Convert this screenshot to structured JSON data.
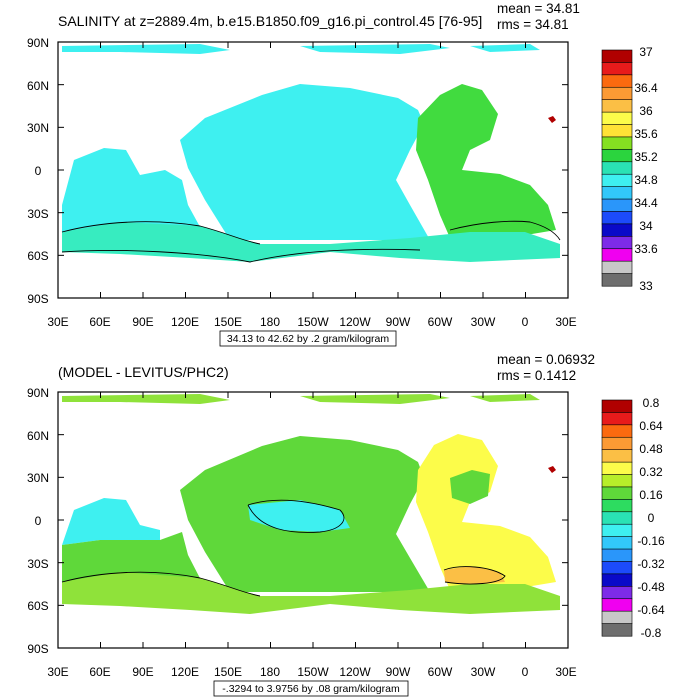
{
  "panels": [
    {
      "title": "SALINITY at z=2889.4m, b.e15.B1850.f09_g16.pi_control.45 [76-95]",
      "mean_text": "mean = 34.81",
      "rms_text": "rms = 34.81",
      "range_text": "34.13 to 42.62 by .2 gram/kilogram",
      "lat_labels": [
        "90N",
        "60N",
        "30N",
        "0",
        "30S",
        "60S",
        "90S"
      ],
      "lon_labels": [
        "30E",
        "60E",
        "90E",
        "120E",
        "150E",
        "180",
        "150W",
        "120W",
        "90W",
        "60W",
        "30W",
        "0",
        "30E"
      ],
      "colorbar": {
        "labels": [
          "37",
          "36.4",
          "36",
          "35.6",
          "35.2",
          "34.8",
          "34.4",
          "34",
          "33.6",
          "33"
        ],
        "colors": [
          "#b00000",
          "#e81b1b",
          "#fb6a0f",
          "#fb9a34",
          "#fbbf45",
          "#fcfc4a",
          "#ffe236",
          "#85e021",
          "#2bd43e",
          "#2ae2b4",
          "#3ef0f0",
          "#32c8fa",
          "#2a96fa",
          "#1c4bfa",
          "#0a0ac8",
          "#7d2be8",
          "#f000f0",
          "#c8c8c8",
          "#6e6e6e"
        ]
      },
      "fields": {
        "pacific": "#3ef0f0",
        "indian": "#3ef0f0",
        "atlantic": "#41db3f",
        "southern": "#37ecc0",
        "med": "#b00000"
      }
    },
    {
      "title": "(MODEL - LEVITUS/PHC2)",
      "mean_text": "mean = 0.06932",
      "rms_text": "rms = 0.1412",
      "range_text": "-.3294 to 3.9756 by .08 gram/kilogram",
      "lat_labels": [
        "90N",
        "60N",
        "30N",
        "0",
        "30S",
        "60S",
        "90S"
      ],
      "lon_labels": [
        "30E",
        "60E",
        "90E",
        "120E",
        "150E",
        "180",
        "150W",
        "120W",
        "90W",
        "60W",
        "30W",
        "0",
        "30E"
      ],
      "colorbar": {
        "labels": [
          "0.8",
          "0.64",
          "0.48",
          "0.32",
          "0.16",
          "0",
          "-0.16",
          "-0.32",
          "-0.48",
          "-0.64",
          "-0.8"
        ],
        "colors": [
          "#b00000",
          "#e81b1b",
          "#fb6a0f",
          "#fb9a34",
          "#fbbf45",
          "#fcfc4a",
          "#b7ee2a",
          "#5fd83a",
          "#2ddc60",
          "#2ae2b4",
          "#3ef0f0",
          "#32c8fa",
          "#2a96fa",
          "#1c4bfa",
          "#0a0ac8",
          "#7d2be8",
          "#f000f0",
          "#c8c8c8",
          "#6e6e6e"
        ]
      },
      "fields": {
        "pacific": "#5fd83a",
        "indian": "#3ef0f0",
        "atlantic": "#fcfc4a",
        "southern": "#8fe23a",
        "med": "#b00000"
      }
    }
  ]
}
